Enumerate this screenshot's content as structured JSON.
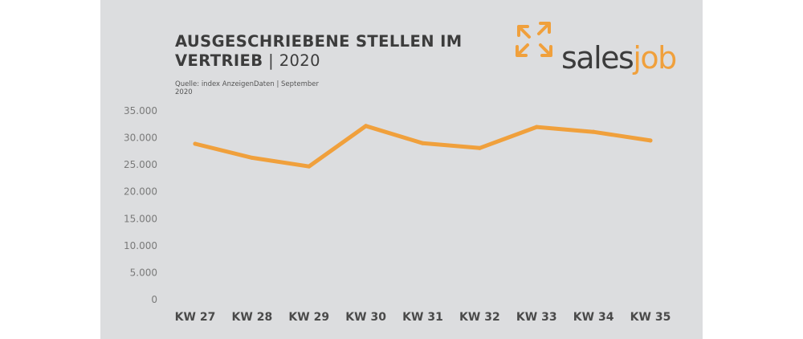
{
  "header": {
    "title_bold_1": "AUSGESCHRIEBENE STELLEN IM",
    "title_bold_2": "VERTRIEB",
    "title_separator": " | ",
    "title_year": "2020",
    "source": "Quelle: index AnzeigenDaten | September 2020"
  },
  "logo": {
    "text_main": "sales",
    "text_accent": "job",
    "accent_color": "#f0a03c"
  },
  "colors": {
    "line": "#f0a03c",
    "panel": "#dcdddf",
    "axis_text": "#7a7a7a",
    "category_text": "#4a4a4a"
  },
  "chart_data": {
    "type": "line",
    "categories": [
      "KW 27",
      "KW 28",
      "KW 29",
      "KW 30",
      "KW 31",
      "KW 32",
      "KW 33",
      "KW 34",
      "KW 35"
    ],
    "values": [
      28900,
      26300,
      24700,
      32200,
      29000,
      28100,
      32000,
      31100,
      29500
    ],
    "ylim": [
      0,
      35000
    ],
    "yticks": [
      0,
      5000,
      10000,
      15000,
      20000,
      25000,
      30000,
      35000
    ],
    "ytick_labels": [
      "0",
      "5.000",
      "10.000",
      "15.000",
      "20.000",
      "25.000",
      "30.000",
      "35.000"
    ],
    "grid": false,
    "legend": "none"
  }
}
